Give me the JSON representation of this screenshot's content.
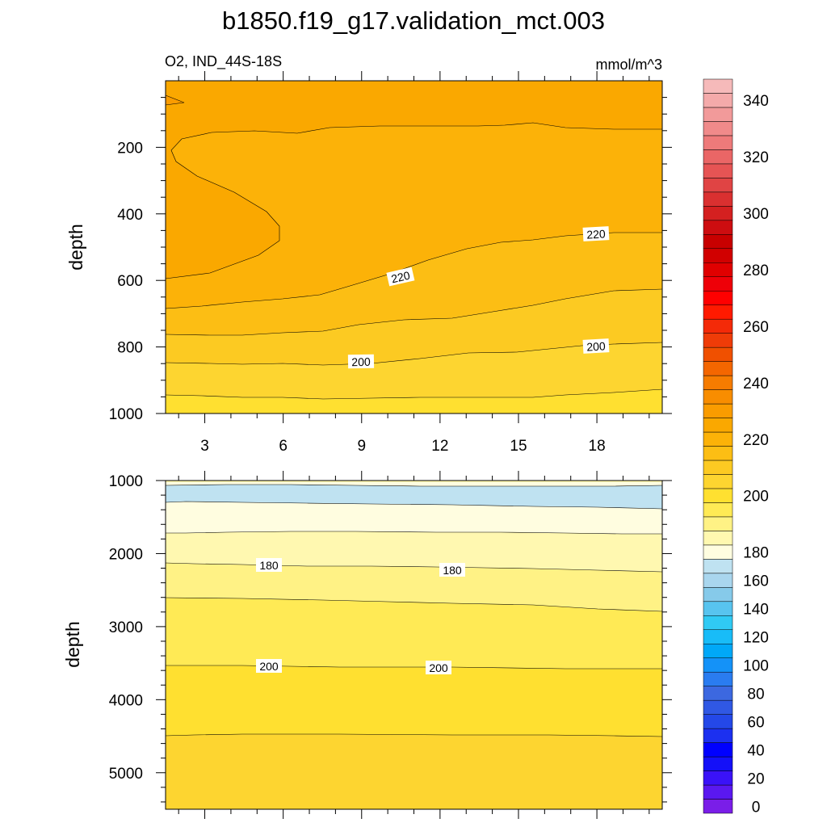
{
  "chart_data": {
    "type": "contour",
    "title": "b1850.f19_g17.validation_mct.003",
    "variable_label": "O2, IND_44S-18S",
    "units_label": "mmol/m^3",
    "colorbar": {
      "levels": [
        0,
        10,
        20,
        30,
        40,
        50,
        60,
        70,
        80,
        90,
        100,
        110,
        120,
        130,
        140,
        150,
        160,
        170,
        180,
        185,
        190,
        195,
        200,
        205,
        210,
        215,
        220,
        225,
        230,
        235,
        240,
        245,
        250,
        255,
        260,
        265,
        270,
        275,
        280,
        285,
        290,
        295,
        300,
        305,
        310,
        315,
        320,
        325,
        330,
        335,
        340,
        345,
        350
      ],
      "colors": [
        "#7a1ee8",
        "#5a18f0",
        "#3a12f8",
        "#1410f8",
        "#0000ff",
        "#1c30f0",
        "#2448e8",
        "#3058e4",
        "#3c68e0",
        "#2a7cf0",
        "#1492f8",
        "#00a8f8",
        "#18bcf8",
        "#30caf4",
        "#58c4ef",
        "#86caea",
        "#a9d6ee",
        "#bfe2f1",
        "#fffde0",
        "#fff8b0",
        "#fff285",
        "#ffea55",
        "#ffe030",
        "#fdd530",
        "#fcca22",
        "#fcbe14",
        "#fcb208",
        "#faa800",
        "#fa9c00",
        "#f88d00",
        "#f67c00",
        "#f46600",
        "#f05000",
        "#ef3c08",
        "#f42a08",
        "#ff1a00",
        "#ff0000",
        "#ee0008",
        "#e00000",
        "#d10000",
        "#c80000",
        "#cd0d10",
        "#d42020",
        "#da3030",
        "#e04444",
        "#e65454",
        "#ea6666",
        "#ee7a7a",
        "#f08a8a",
        "#f29a9a",
        "#f4aaaa",
        "#f6baba"
      ],
      "tick_labels": [
        "0",
        "20",
        "40",
        "60",
        "80",
        "100",
        "120",
        "140",
        "160",
        "180",
        "200",
        "220",
        "240",
        "260",
        "280",
        "300",
        "320",
        "340"
      ]
    },
    "top_panel": {
      "xlabel": "",
      "ylabel": "depth",
      "x_ticks": [
        "3",
        "6",
        "9",
        "12",
        "15",
        "18"
      ],
      "y_ticks": [
        "200",
        "400",
        "600",
        "800",
        "1000"
      ],
      "ylim": [
        0,
        1000
      ],
      "xlim": [
        1.5,
        20.5
      ],
      "contour_labels": [
        "220",
        "220",
        "200",
        "200"
      ]
    },
    "bottom_panel": {
      "xlabel": "",
      "ylabel": "depth",
      "y_ticks": [
        "1000",
        "2000",
        "3000",
        "4000",
        "5000"
      ],
      "ylim": [
        1000,
        5500
      ],
      "xlim": [
        1.5,
        20.5
      ],
      "contour_labels": [
        "180",
        "180",
        "200",
        "200"
      ]
    }
  }
}
